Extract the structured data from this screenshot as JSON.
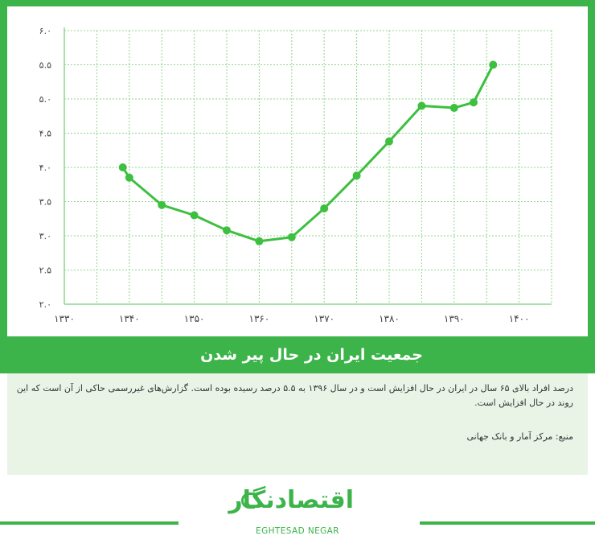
{
  "header": {
    "title": "جمعیت ایران در حال پیر شدن"
  },
  "info": {
    "description": "درصد افراد بالای ۶۵ سال در ایران در حال افزایش است و در سال ۱۳۹۶ به ۵.۵ درصد رسیده بوده است. گزارش‌های غیررسمی حاکی از آن است که این روند در حال افزایش است.",
    "source": "منبع: مرکز آمار و بانک جهانی"
  },
  "logo": {
    "name_fa": "اقتصادنگار",
    "name_en": "EGHTESAD NEGAR"
  },
  "colors": {
    "accent": "#3cb44a",
    "line": "#3dbf3f",
    "grid": "#8fd68f",
    "info_bg": "#e9f4e7"
  },
  "chart_data": {
    "type": "line",
    "x": [
      1339,
      1340,
      1345,
      1350,
      1355,
      1360,
      1365,
      1370,
      1375,
      1380,
      1385,
      1390,
      1393,
      1396
    ],
    "y": [
      4.0,
      3.85,
      3.45,
      3.3,
      3.08,
      2.92,
      2.98,
      3.4,
      3.88,
      4.38,
      4.9,
      4.87,
      4.95,
      5.5
    ],
    "xlim": [
      1330,
      1405
    ],
    "ylim": [
      2.0,
      6.0
    ],
    "x_ticks": [
      1330,
      1340,
      1350,
      1360,
      1370,
      1380,
      1390,
      1400
    ],
    "x_tick_labels": [
      "۱۳۳۰",
      "۱۳۴۰",
      "۱۳۵۰",
      "۱۳۶۰",
      "۱۳۷۰",
      "۱۳۸۰",
      "۱۳۹۰",
      "۱۴۰۰"
    ],
    "y_ticks": [
      2.0,
      2.5,
      3.0,
      3.5,
      4.0,
      4.5,
      5.0,
      5.5,
      6.0
    ],
    "y_tick_labels": [
      "۲.۰",
      "۲.۵",
      "۳.۰",
      "۳.۵",
      "۴.۰",
      "۴.۵",
      "۵.۰",
      "۵.۵",
      "۶.۰"
    ],
    "grid": true
  }
}
